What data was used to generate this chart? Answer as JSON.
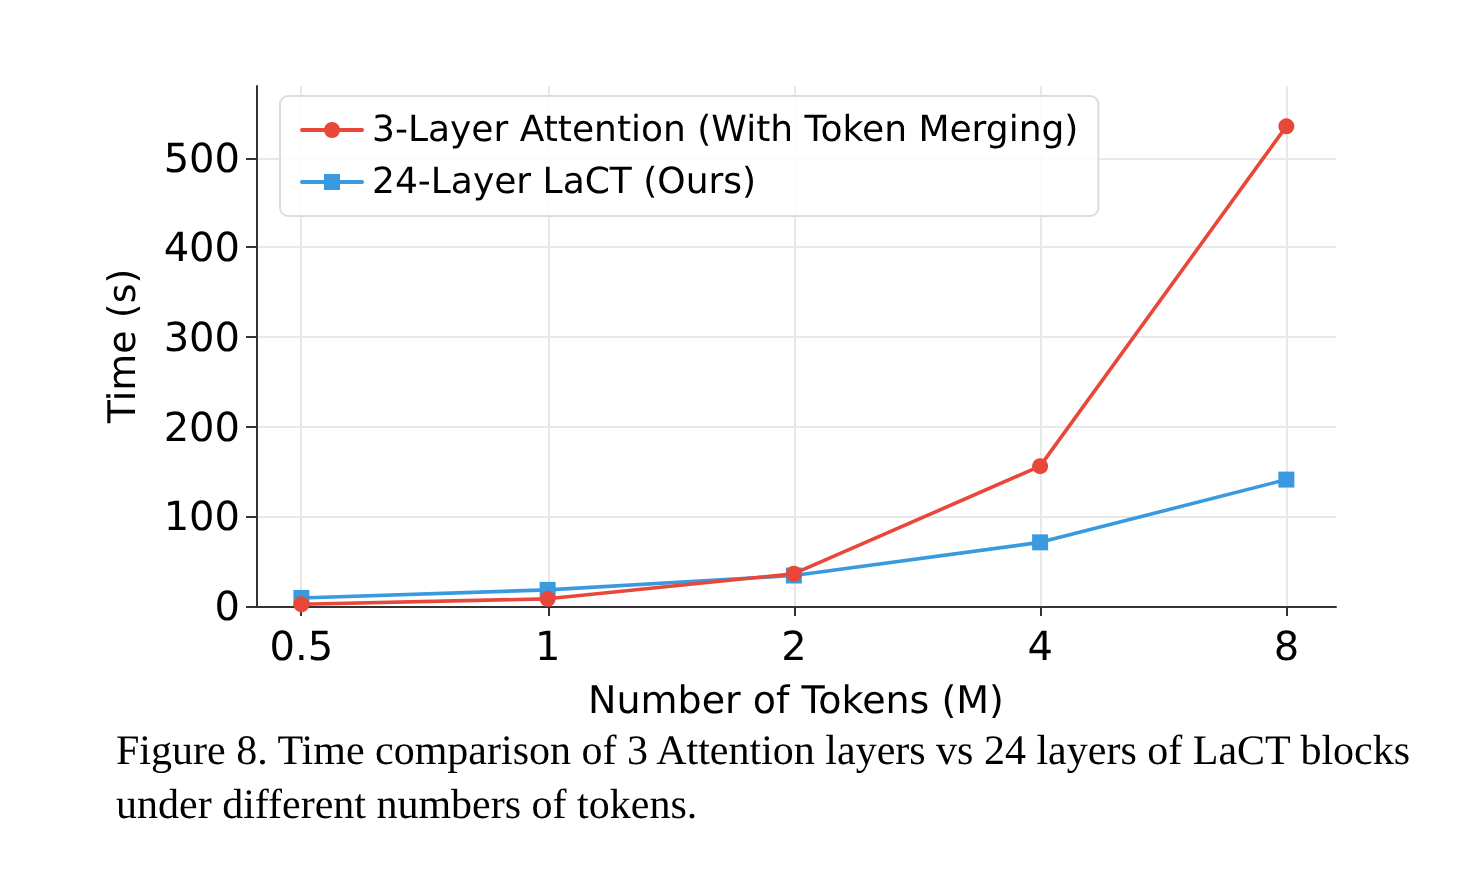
{
  "chart_data": {
    "type": "line",
    "xlabel": "Number of Tokens (M)",
    "ylabel": "Time (s)",
    "x": [
      0.5,
      1,
      2,
      4,
      8
    ],
    "log": "x",
    "xlim": [
      0.44,
      9.2
    ],
    "xticks": [
      0.5,
      1,
      2,
      4,
      8
    ],
    "ylim": [
      0,
      580
    ],
    "yticks": [
      0,
      100,
      200,
      300,
      400,
      500
    ],
    "series": [
      {
        "name": "3-Layer Attention (With Token Merging)",
        "color": "#e8483a",
        "marker": "circle",
        "values": [
          2,
          8,
          36,
          156,
          535
        ]
      },
      {
        "name": "24-Layer LaCT (Ours)",
        "color": "#3a9ae0",
        "marker": "square",
        "values": [
          9,
          18,
          34,
          71,
          141
        ]
      }
    ],
    "grid": true,
    "legend": "top left",
    "line_style": "solid",
    "annotations": [
      "Figure 8.  Time comparison of 3 Attention layers vs 24 layers of LaCT blocks under different numbers of tokens."
    ]
  }
}
